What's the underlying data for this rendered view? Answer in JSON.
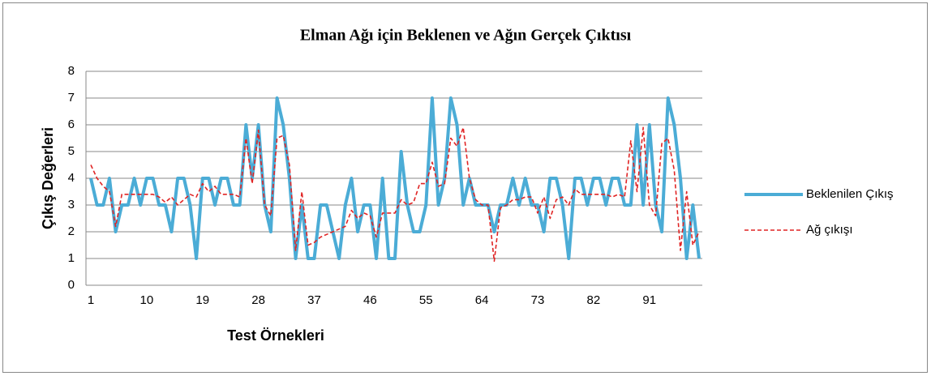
{
  "chart_data": {
    "type": "line",
    "title": "Elman Ağı için Beklenen ve Ağın Gerçek Çıktısı",
    "xlabel": "Test Örnekleri",
    "ylabel": "Çıkış Değerleri",
    "categories": [
      "1",
      null,
      null,
      null,
      null,
      null,
      null,
      null,
      null,
      "10",
      null,
      null,
      null,
      null,
      null,
      null,
      null,
      null,
      "19",
      null,
      null,
      null,
      null,
      null,
      null,
      null,
      null,
      "28",
      null,
      null,
      null,
      null,
      null,
      null,
      null,
      null,
      "37",
      null,
      null,
      null,
      null,
      null,
      null,
      null,
      null,
      "46",
      null,
      null,
      null,
      null,
      null,
      null,
      null,
      null,
      "55",
      null,
      null,
      null,
      null,
      null,
      null,
      null,
      null,
      "64",
      null,
      null,
      null,
      null,
      null,
      null,
      null,
      null,
      "73",
      null,
      null,
      null,
      null,
      null,
      null,
      null,
      null,
      "82",
      null,
      null,
      null,
      null,
      null,
      null,
      null,
      null,
      "91",
      null,
      null,
      null,
      null,
      null,
      null,
      null,
      null
    ],
    "series": [
      {
        "name": "Beklenilen Çıkış",
        "color": "#4bacd6",
        "values": [
          4,
          3,
          3,
          4,
          2,
          3,
          3,
          4,
          3,
          4,
          4,
          3,
          3,
          2,
          4,
          4,
          3,
          1,
          4,
          4,
          3,
          4,
          4,
          3,
          3,
          6,
          4,
          6,
          3,
          2,
          7,
          6,
          4,
          1,
          3,
          1,
          1,
          3,
          3,
          2,
          1,
          3,
          4,
          2,
          3,
          3,
          1,
          4,
          1,
          1,
          5,
          3,
          2,
          2,
          3,
          7,
          3,
          4,
          7,
          6,
          3,
          4,
          3,
          3,
          3,
          2,
          3,
          3,
          4,
          3,
          4,
          3,
          3,
          2,
          4,
          4,
          3,
          1,
          4,
          4,
          3,
          4,
          4,
          3,
          4,
          4,
          3,
          3,
          6,
          3,
          6,
          3,
          2,
          7,
          6,
          4,
          1,
          3,
          1
        ]
      },
      {
        "name": "Ağ çıkışı",
        "color": "#e02424",
        "dashed": true,
        "values": [
          4.5,
          4.0,
          3.7,
          3.5,
          2.2,
          3.4,
          3.4,
          3.4,
          3.4,
          3.4,
          3.4,
          3.3,
          3.1,
          3.3,
          3.0,
          3.2,
          3.4,
          3.3,
          3.8,
          3.5,
          3.7,
          3.4,
          3.4,
          3.4,
          3.3,
          5.5,
          3.8,
          5.8,
          3.0,
          2.6,
          5.5,
          5.6,
          4.5,
          1.3,
          3.5,
          1.5,
          1.6,
          1.8,
          1.9,
          2.0,
          2.1,
          2.2,
          2.8,
          2.5,
          2.7,
          2.6,
          1.8,
          2.7,
          2.7,
          2.7,
          3.2,
          3.0,
          3.1,
          3.8,
          3.8,
          4.6,
          3.7,
          3.8,
          5.5,
          5.2,
          5.9,
          4.0,
          3.2,
          3.0,
          3.0,
          0.9,
          2.9,
          3.0,
          3.2,
          3.2,
          3.3,
          3.3,
          2.7,
          3.3,
          2.5,
          3.2,
          3.3,
          3.0,
          3.6,
          3.4,
          3.4,
          3.4,
          3.4,
          3.4,
          3.3,
          3.4,
          3.3,
          5.4,
          3.5,
          5.9,
          3.0,
          2.6,
          5.3,
          5.5,
          4.3,
          1.3,
          3.5,
          1.5,
          2.0
        ]
      }
    ],
    "ylim": [
      0,
      8
    ],
    "yticks": [
      0,
      1,
      2,
      3,
      4,
      5,
      6,
      7,
      8
    ],
    "grid": true,
    "legend": "right"
  }
}
